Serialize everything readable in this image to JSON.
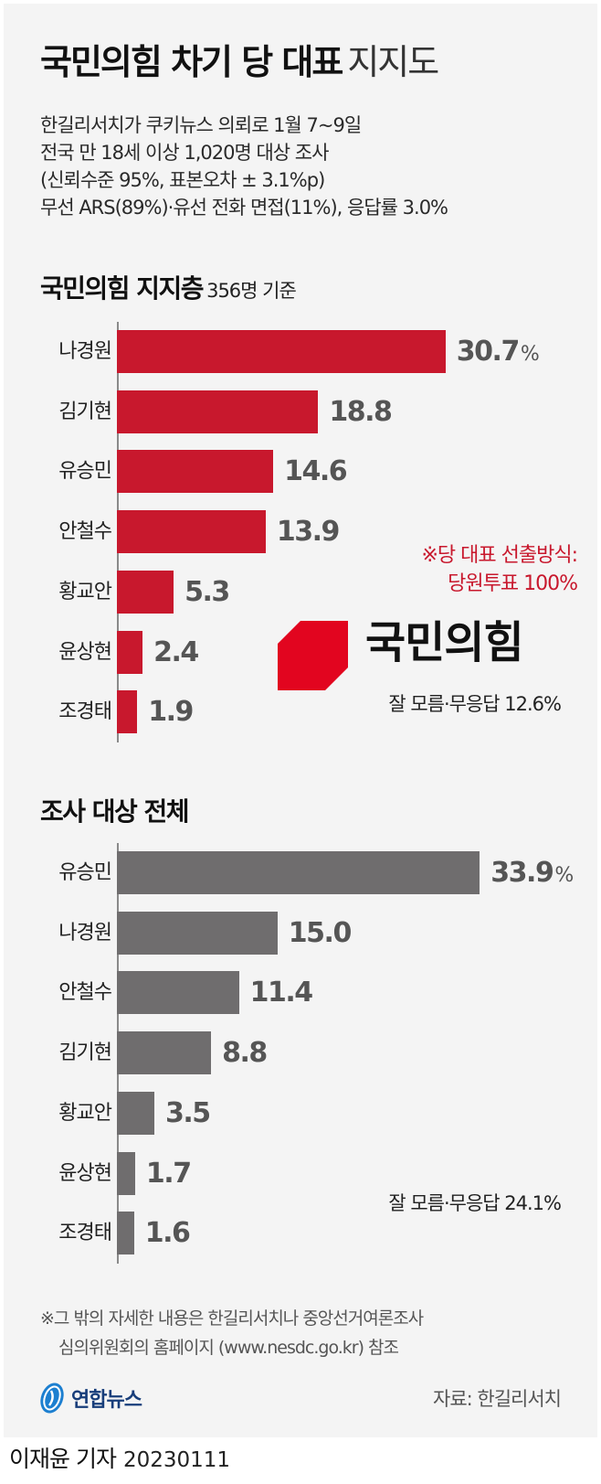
{
  "header": {
    "title_bold": "국민의힘 차기 당 대표",
    "title_light": "지지도",
    "description_lines": [
      "한길리서치가 쿠키뉴스 의뢰로 1월 7~9일",
      "전국 만 18세 이상 1,020명 대상 조사",
      "(신뢰수준 95%, 표본오차 ± 3.1%p)",
      "무선 ARS(89%)·유선 전화 면접(11%), 응답률 3.0%"
    ]
  },
  "section1": {
    "title": "국민의힘 지지층",
    "subtitle": "356명 기준",
    "note_lines": [
      "※당 대표 선출방식:",
      "당원투표 100%"
    ],
    "logo_text": "국민의힘",
    "dont_know": "잘 모름·무응답 12.6%"
  },
  "section2": {
    "title": "조사 대상 전체",
    "dont_know": "잘 모름·무응답 24.1%"
  },
  "footer": {
    "footnote_lines": [
      "※그 밖의 자세한 내용은 한길리서치나 중앙선거여론조사",
      "심의위원회의 홈페이지 (www.nesdc.go.kr) 참조"
    ],
    "publisher": "연합뉴스",
    "source": "자료: 한길리서치",
    "reporter": "이재윤 기자",
    "date": "20230111"
  },
  "colors": {
    "bar_party": "#c8182d",
    "bar_all": "#6f6d6e",
    "logo_red": "#e2051f",
    "value_text": "#555555",
    "background": "#f4f4f4"
  },
  "chart_data": [
    {
      "type": "bar",
      "orientation": "horizontal",
      "title": "국민의힘 지지층 356명 기준",
      "categories": [
        "나경원",
        "김기현",
        "유승민",
        "안철수",
        "황교안",
        "윤상현",
        "조경태"
      ],
      "values": [
        30.7,
        18.8,
        14.6,
        13.9,
        5.3,
        2.4,
        1.9
      ],
      "value_labels": [
        "30.7",
        "18.8",
        "14.6",
        "13.9",
        "5.3",
        "2.4",
        "1.9"
      ],
      "unit": "%",
      "annotations": [
        "※당 대표 선출방식: 당원투표 100%",
        "잘 모름·무응답 12.6%"
      ],
      "xlabel": "",
      "ylabel": "",
      "xlim": [
        0,
        35
      ],
      "grid": false
    },
    {
      "type": "bar",
      "orientation": "horizontal",
      "title": "조사 대상 전체",
      "categories": [
        "유승민",
        "나경원",
        "안철수",
        "김기현",
        "황교안",
        "윤상현",
        "조경태"
      ],
      "values": [
        33.9,
        15.0,
        11.4,
        8.8,
        3.5,
        1.7,
        1.6
      ],
      "value_labels": [
        "33.9",
        "15.0",
        "11.4",
        "8.8",
        "3.5",
        "1.7",
        "1.6"
      ],
      "unit": "%",
      "annotations": [
        "잘 모름·무응답 24.1%"
      ],
      "xlabel": "",
      "ylabel": "",
      "xlim": [
        0,
        35
      ],
      "grid": false
    }
  ]
}
